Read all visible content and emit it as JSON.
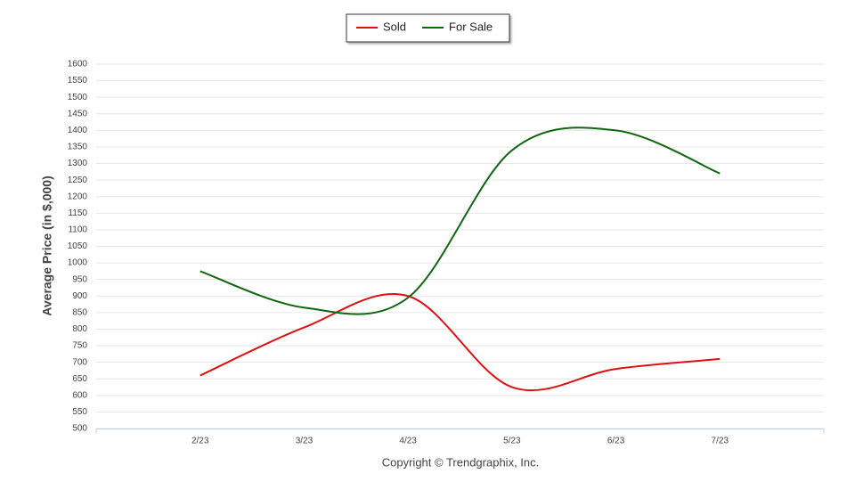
{
  "chart_data": {
    "type": "line",
    "y_axis_label": "Average Price (in $,000)",
    "credits": "Copyright © Trendgraphix, Inc.",
    "categories": [
      "2/23",
      "3/23",
      "4/23",
      "5/23",
      "6/23",
      "7/23"
    ],
    "series": [
      {
        "name": "Sold",
        "color": "#dd1111",
        "values": [
          660,
          805,
          900,
          625,
          680,
          710
        ]
      },
      {
        "name": "For Sale",
        "color": "#116611",
        "values": [
          975,
          865,
          895,
          1340,
          1400,
          1270
        ]
      }
    ],
    "ylim": [
      500,
      1600
    ],
    "yticks": [
      500,
      550,
      600,
      650,
      700,
      750,
      800,
      850,
      900,
      950,
      1000,
      1050,
      1100,
      1150,
      1200,
      1250,
      1300,
      1350,
      1400,
      1450,
      1500,
      1550,
      1600
    ],
    "grid": true,
    "smooth": true,
    "legend": "top"
  }
}
